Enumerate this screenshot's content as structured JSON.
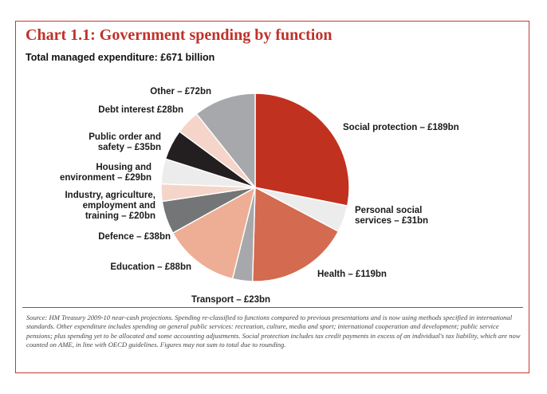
{
  "chart_data": {
    "type": "pie",
    "title": "Chart 1.1: Government spending by function",
    "subtitle": "Total managed expenditure: £671 billion",
    "total_bn": 671,
    "slices": [
      {
        "name": "Social protection",
        "value": 189,
        "label": "Social protection – £189bn",
        "color": "#c1311f"
      },
      {
        "name": "Personal social services",
        "value": 31,
        "label": "Personal social services – £31bn",
        "color": "#ececec"
      },
      {
        "name": "Health",
        "value": 119,
        "label": "Health – £119bn",
        "color": "#d46a4f"
      },
      {
        "name": "Transport",
        "value": 23,
        "label": "Transport – £23bn",
        "color": "#a6a8ab"
      },
      {
        "name": "Education",
        "value": 88,
        "label": "Education – £88bn",
        "color": "#edae95"
      },
      {
        "name": "Defence",
        "value": 38,
        "label": "Defence – £38bn",
        "color": "#737577"
      },
      {
        "name": "Industry, agriculture, employment and training",
        "value": 20,
        "label": "Industry, agriculture, employment and training – £20bn",
        "color": "#f5d5c9"
      },
      {
        "name": "Housing and environment",
        "value": 29,
        "label": "Housing and environment – £29bn",
        "color": "#ececec"
      },
      {
        "name": "Public order and safety",
        "value": 35,
        "label": "Public order and safety – £35bn",
        "color": "#231f20"
      },
      {
        "name": "Debt interest",
        "value": 28,
        "label": "Debt interest £28bn",
        "color": "#f5d5c9"
      },
      {
        "name": "Other",
        "value": 72,
        "label": "Other – £72bn",
        "color": "#a6a8ab"
      }
    ],
    "label_lines": [
      [
        "Social protection – £189bn"
      ],
      [
        "Personal social",
        "services – £31bn"
      ],
      [
        "Health – £119bn"
      ],
      [
        "Transport – £23bn"
      ],
      [
        "Education – £88bn"
      ],
      [
        "Defence – £38bn"
      ],
      [
        "Industry, agriculture,",
        "employment and",
        "training – £20bn"
      ],
      [
        "Housing and",
        "environment – £29bn"
      ],
      [
        "Public order and",
        "safety – £35bn"
      ],
      [
        "Debt interest £28bn"
      ],
      [
        "Other – £72bn"
      ]
    ],
    "source": "Source: HM Treasury 2009-10 near-cash projections. Spending re-classified to functions compared to previous presentations and is now using methods specified in international standards. Other expenditure includes spending on general public services: recreation, culture, media and sport; international cooperation and development; public service pensions; plus spending yet to be allocated and some accounting adjustments. Social protection includes tax credit payments in excess of an individual's tax liability, which are now counted on AME, in line with OECD guidelines. Figures may not sum to total due to rounding."
  }
}
